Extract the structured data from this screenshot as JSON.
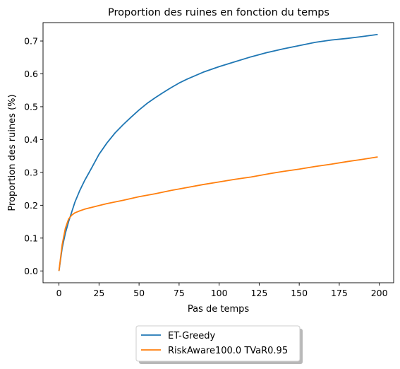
{
  "chart_data": {
    "type": "line",
    "title": "Proportion des ruines en fonction du temps",
    "xlabel": "Pas de temps",
    "ylabel": "Proportion des ruines (%)",
    "xlim": [
      -9.95,
      208.95
    ],
    "ylim": [
      -0.036,
      0.756
    ],
    "xticks": [
      0,
      25,
      50,
      75,
      100,
      125,
      150,
      175,
      200
    ],
    "xtick_labels": [
      "0",
      "25",
      "50",
      "75",
      "100",
      "125",
      "150",
      "175",
      "200"
    ],
    "yticks": [
      0.0,
      0.1,
      0.2,
      0.3,
      0.4,
      0.5,
      0.6,
      0.7
    ],
    "ytick_labels": [
      "0.0",
      "0.1",
      "0.2",
      "0.3",
      "0.4",
      "0.5",
      "0.6",
      "0.7"
    ],
    "grid": false,
    "legend_position": "bottom-center, below the axes",
    "series": [
      {
        "name": "ET-Greedy",
        "color": "#1f77b4",
        "x": [
          0,
          2,
          4,
          6,
          8,
          10,
          13,
          16,
          20,
          25,
          30,
          35,
          40,
          45,
          50,
          55,
          60,
          65,
          70,
          75,
          80,
          90,
          100,
          110,
          120,
          130,
          140,
          150,
          160,
          170,
          180,
          190,
          199
        ],
        "y": [
          0.0,
          0.07,
          0.115,
          0.15,
          0.18,
          0.21,
          0.245,
          0.275,
          0.31,
          0.355,
          0.39,
          0.42,
          0.445,
          0.468,
          0.49,
          0.51,
          0.527,
          0.543,
          0.558,
          0.572,
          0.584,
          0.605,
          0.622,
          0.637,
          0.652,
          0.665,
          0.676,
          0.686,
          0.696,
          0.703,
          0.708,
          0.714,
          0.72
        ]
      },
      {
        "name": "RiskAware100.0 TVaR0.95",
        "color": "#ff7f0e",
        "x": [
          0,
          2,
          4,
          6,
          8,
          10,
          13,
          16,
          20,
          25,
          30,
          40,
          50,
          60,
          70,
          80,
          90,
          100,
          110,
          120,
          130,
          140,
          150,
          160,
          170,
          180,
          190,
          199
        ],
        "y": [
          0.0,
          0.08,
          0.13,
          0.158,
          0.17,
          0.177,
          0.183,
          0.188,
          0.193,
          0.199,
          0.205,
          0.215,
          0.226,
          0.235,
          0.245,
          0.254,
          0.263,
          0.271,
          0.279,
          0.286,
          0.295,
          0.303,
          0.31,
          0.318,
          0.325,
          0.333,
          0.34,
          0.347
        ]
      }
    ]
  }
}
